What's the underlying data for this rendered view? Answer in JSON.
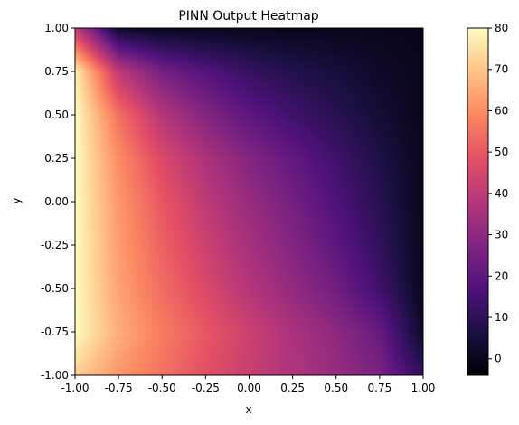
{
  "chart_data": {
    "type": "heatmap",
    "title": "PINN Output Heatmap",
    "xlabel": "x",
    "ylabel": "y",
    "xlim": [
      -1.0,
      1.0
    ],
    "ylim": [
      -1.0,
      1.0
    ],
    "xticks": [
      "-1.00",
      "-0.75",
      "-0.50",
      "-0.25",
      "0.00",
      "0.25",
      "0.50",
      "0.75",
      "1.00"
    ],
    "yticks": [
      "-1.00",
      "-0.75",
      "-0.50",
      "-0.25",
      "0.00",
      "0.25",
      "0.50",
      "0.75",
      "1.00"
    ],
    "xtick_values": [
      -1.0,
      -0.75,
      -0.5,
      -0.25,
      0.0,
      0.25,
      0.5,
      0.75,
      1.0
    ],
    "ytick_values": [
      -1.0,
      -0.75,
      -0.5,
      -0.25,
      0.0,
      0.25,
      0.5,
      0.75,
      1.0
    ],
    "colormap": "magma",
    "colorbar": {
      "range": [
        -4,
        80
      ],
      "ticks": [
        0,
        10,
        20,
        30,
        40,
        50,
        60,
        70,
        80
      ],
      "tick_labels": [
        "0",
        "10",
        "20",
        "30",
        "40",
        "50",
        "60",
        "70",
        "80"
      ],
      "placement": "right"
    },
    "grid": false,
    "field_samples": {
      "x": [
        -1.0,
        -0.75,
        -0.5,
        -0.25,
        0.0,
        0.25,
        0.5,
        0.75,
        1.0
      ],
      "y": [
        1.0,
        0.75,
        0.5,
        0.25,
        0.0,
        -0.25,
        -0.5,
        -0.75,
        -1.0
      ],
      "z": [
        [
          40,
          2,
          0,
          0,
          0,
          0,
          0,
          0,
          0
        ],
        [
          78,
          40,
          25,
          18,
          12,
          8,
          5,
          2,
          0
        ],
        [
          80,
          55,
          38,
          28,
          20,
          14,
          9,
          4,
          0
        ],
        [
          80,
          60,
          46,
          36,
          28,
          21,
          14,
          7,
          0
        ],
        [
          80,
          62,
          50,
          40,
          32,
          25,
          17,
          9,
          0
        ],
        [
          80,
          63,
          52,
          43,
          35,
          28,
          20,
          11,
          0
        ],
        [
          80,
          64,
          54,
          46,
          38,
          31,
          24,
          14,
          0
        ],
        [
          80,
          66,
          57,
          50,
          43,
          36,
          30,
          22,
          2
        ],
        [
          72,
          62,
          55,
          48,
          42,
          37,
          32,
          26,
          10
        ]
      ]
    }
  }
}
